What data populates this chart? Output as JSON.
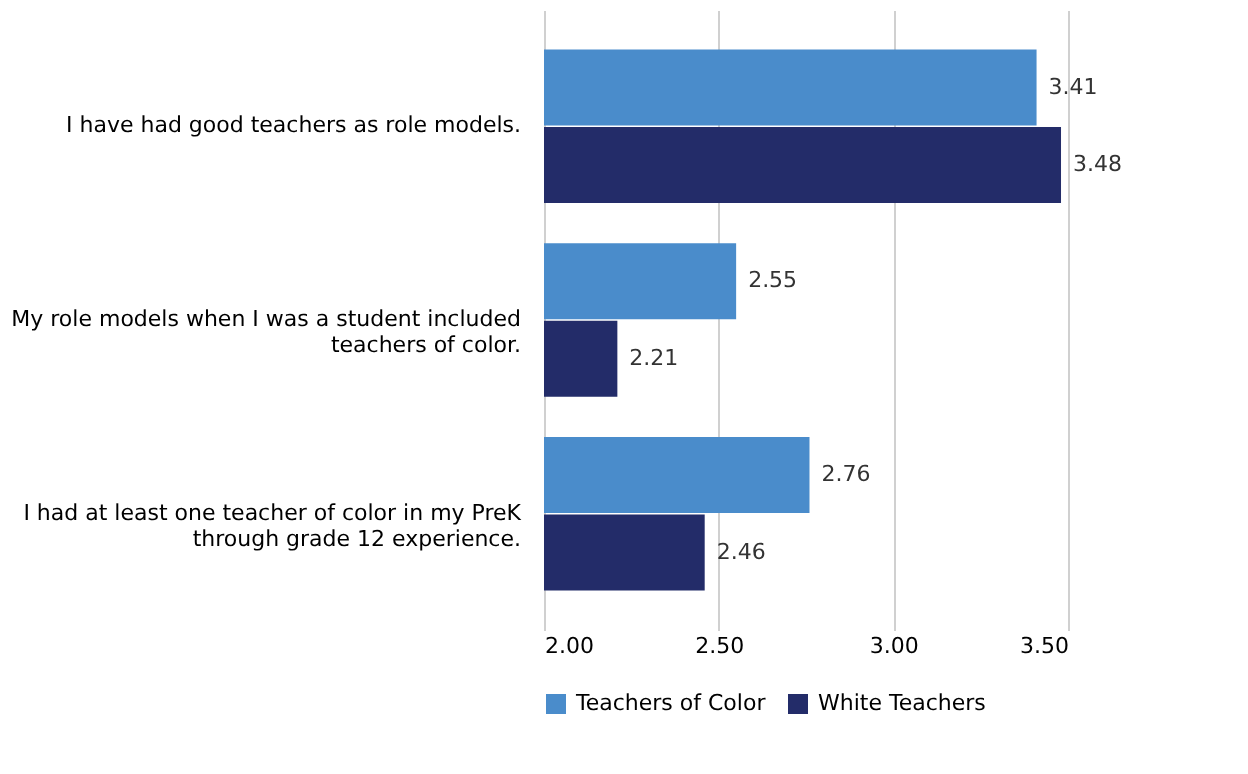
{
  "chart_data": {
    "type": "bar",
    "orientation": "horizontal",
    "categories": [
      "I have had good teachers as role models.",
      "My role models when I was a student included teachers of color.",
      "I had at least one teacher of color in my PreK through grade 12 experience."
    ],
    "series": [
      {
        "name": "Teachers of Color",
        "color": "#4a8ccb",
        "values": [
          3.41,
          2.55,
          2.76
        ]
      },
      {
        "name": "White Teachers",
        "color": "#232c69",
        "values": [
          3.48,
          2.21,
          2.46
        ]
      }
    ],
    "xlim": [
      2,
      3.5
    ],
    "xticks": [
      {
        "value": 2,
        "label": "2.00"
      },
      {
        "value": 2.5,
        "label": "2.50"
      },
      {
        "value": 3,
        "label": "3.00"
      },
      {
        "value": 3.5,
        "label": "3.50"
      }
    ],
    "grid": "x",
    "data_labels": true,
    "legend": "bottom"
  }
}
